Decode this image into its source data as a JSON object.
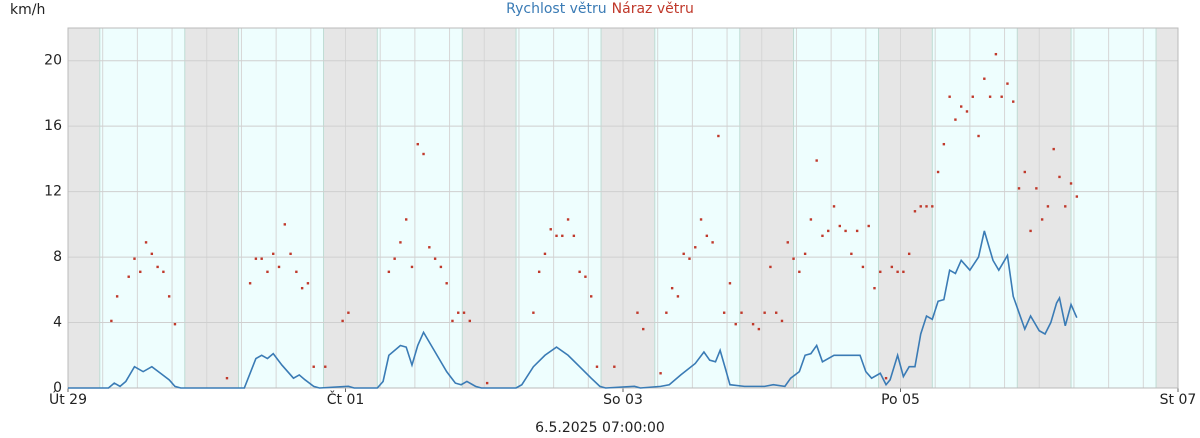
{
  "chart_data": {
    "type": "line",
    "y_label": "km/h",
    "timestamp": "6.5.2025 07:00:00",
    "xlim": [
      0,
      192
    ],
    "xticks": [
      {
        "value": 0,
        "label": "Út 29"
      },
      {
        "value": 48,
        "label": "Čt 01"
      },
      {
        "value": 96,
        "label": "So 03"
      },
      {
        "value": 144,
        "label": "Po 05"
      },
      {
        "value": 192,
        "label": "St 07"
      }
    ],
    "ylim": [
      0,
      22
    ],
    "yticks": [
      0,
      4,
      8,
      12,
      16,
      20
    ],
    "grid": true,
    "series": [
      {
        "name": "Rychlost větru",
        "color": "#3a7bb5",
        "type": "line",
        "x": [
          0,
          7,
          8,
          9,
          10,
          11.5,
          13,
          14.5,
          16,
          17.5,
          18.5,
          19.5,
          30.5,
          32.5,
          33.5,
          34.5,
          35.5,
          37,
          39,
          40,
          41,
          42.5,
          43.5,
          48.5,
          49.5,
          53.5,
          54.5,
          55.5,
          57.5,
          58.5,
          59.5,
          60.5,
          61.5,
          63.5,
          65.5,
          67,
          68,
          69,
          70.5,
          71.5,
          77.5,
          78.5,
          80.5,
          82.5,
          84.5,
          86.5,
          88.5,
          90.5,
          92,
          93,
          98,
          99,
          102.5,
          104,
          106,
          108.5,
          110,
          111,
          112,
          112.8,
          113.7,
          114.5,
          117,
          120.5,
          122,
          124,
          125,
          126.5,
          127.5,
          128.5,
          129.5,
          130.5,
          132.5,
          134.5,
          137,
          138,
          139,
          140.5,
          141.5,
          142.2,
          143.5,
          144.5,
          145.5,
          146.5,
          147.5,
          148.5,
          149.5,
          150.5,
          151.5,
          152.5,
          153.5,
          154.5,
          156,
          157.5,
          158.5,
          160,
          161,
          162.5,
          163.5,
          165.5,
          166.5,
          168,
          169,
          170,
          171,
          171.5,
          172.5,
          173.5,
          174.5
        ],
        "values": [
          0,
          0,
          0.3,
          0.1,
          0.4,
          1.3,
          1.0,
          1.3,
          0.9,
          0.5,
          0.1,
          0,
          0,
          1.8,
          2.0,
          1.8,
          2.1,
          1.4,
          0.6,
          0.8,
          0.5,
          0.1,
          0,
          0.1,
          0,
          0,
          0.4,
          2.0,
          2.6,
          2.5,
          1.4,
          2.6,
          3.4,
          2.2,
          1.0,
          0.3,
          0.2,
          0.4,
          0.1,
          0,
          0,
          0.2,
          1.3,
          2.0,
          2.5,
          2.0,
          1.3,
          0.6,
          0.1,
          0,
          0.1,
          0,
          0.1,
          0.2,
          0.8,
          1.5,
          2.2,
          1.7,
          1.6,
          2.3,
          1.2,
          0.2,
          0.1,
          0.1,
          0.2,
          0.1,
          0.6,
          1.0,
          2.0,
          2.1,
          2.6,
          1.6,
          2.0,
          2.0,
          2.0,
          1.0,
          0.6,
          0.9,
          0.2,
          0.5,
          2.0,
          0.7,
          1.3,
          1.3,
          3.3,
          4.4,
          4.2,
          5.3,
          5.4,
          7.2,
          7.0,
          7.8,
          7.2,
          8.0,
          9.6,
          7.8,
          7.2,
          8.1,
          5.6,
          3.6,
          4.4,
          3.5,
          3.3,
          4.0,
          5.2,
          5.5,
          3.8,
          5.1,
          4.3
        ]
      },
      {
        "name": "Náraz větru",
        "color": "#c0392b",
        "type": "scatter",
        "x": [
          7.5,
          8.5,
          10.5,
          11.5,
          12.5,
          13.5,
          14.5,
          15.5,
          16.5,
          17.5,
          18.5,
          27.5,
          31.5,
          32.5,
          33.5,
          34.5,
          35.5,
          36.5,
          37.5,
          38.5,
          39.5,
          40.5,
          41.5,
          42.5,
          44.5,
          47.5,
          48.5,
          55.5,
          56.5,
          57.5,
          58.5,
          59.5,
          60.5,
          61.5,
          62.5,
          63.5,
          64.5,
          65.5,
          66.5,
          67.5,
          68.5,
          69.5,
          72.5,
          80.5,
          81.5,
          82.5,
          83.5,
          84.5,
          85.5,
          86.5,
          87.5,
          88.5,
          89.5,
          90.5,
          91.5,
          94.5,
          98.5,
          99.5,
          102.5,
          103.5,
          104.5,
          105.5,
          106.5,
          107.5,
          108.5,
          109.5,
          110.5,
          111.5,
          112.5,
          113.5,
          114.5,
          115.5,
          116.5,
          118.5,
          119.5,
          120.5,
          121.5,
          122.5,
          123.5,
          124.5,
          125.5,
          126.5,
          127.5,
          128.5,
          129.5,
          130.5,
          131.5,
          132.5,
          133.5,
          134.5,
          135.5,
          136.5,
          137.5,
          138.5,
          139.5,
          140.5,
          141.5,
          142.5,
          143.5,
          144.5,
          145.5,
          146.5,
          147.5,
          148.5,
          149.5,
          150.5,
          151.5,
          152.5,
          153.5,
          154.5,
          155.5,
          156.5,
          157.5,
          158.5,
          159.5,
          160.5,
          161.5,
          162.5,
          163.5,
          164.5,
          165.5,
          166.5,
          167.5,
          168.5,
          169.5,
          170.5,
          171.5,
          172.5,
          173.5,
          174.5
        ],
        "values": [
          4.1,
          5.6,
          6.8,
          7.9,
          7.1,
          8.9,
          8.2,
          7.4,
          7.1,
          5.6,
          3.9,
          0.6,
          6.4,
          7.9,
          7.9,
          7.1,
          8.2,
          7.4,
          10,
          8.2,
          7.1,
          6.1,
          6.4,
          1.3,
          1.3,
          4.1,
          4.6,
          7.1,
          7.9,
          8.9,
          10.3,
          7.4,
          14.9,
          14.3,
          8.6,
          7.9,
          7.4,
          6.4,
          4.1,
          4.6,
          4.6,
          4.1,
          0.3,
          4.6,
          7.1,
          8.2,
          9.7,
          9.3,
          9.3,
          10.3,
          9.3,
          7.1,
          6.8,
          5.6,
          1.3,
          1.3,
          4.6,
          3.6,
          0.9,
          4.6,
          6.1,
          5.6,
          8.2,
          7.9,
          8.6,
          10.3,
          9.3,
          8.9,
          15.4,
          4.6,
          6.4,
          3.9,
          4.6,
          3.9,
          3.6,
          4.6,
          7.4,
          4.6,
          4.1,
          8.9,
          7.9,
          7.1,
          8.2,
          10.3,
          13.9,
          9.3,
          9.6,
          11.1,
          9.9,
          9.6,
          8.2,
          9.6,
          7.4,
          9.9,
          6.1,
          7.1,
          0.6,
          7.4,
          7.1,
          7.1,
          8.2,
          10.8,
          11.1,
          11.1,
          11.1,
          13.2,
          14.9,
          17.8,
          16.4,
          17.2,
          16.9,
          17.8,
          15.4,
          18.9,
          17.8,
          20.4,
          17.8,
          18.6,
          17.5,
          12.2,
          13.2,
          9.6,
          12.2,
          10.3,
          11.1,
          14.6,
          12.9,
          11.1,
          12.5,
          11.7
        ]
      }
    ]
  }
}
